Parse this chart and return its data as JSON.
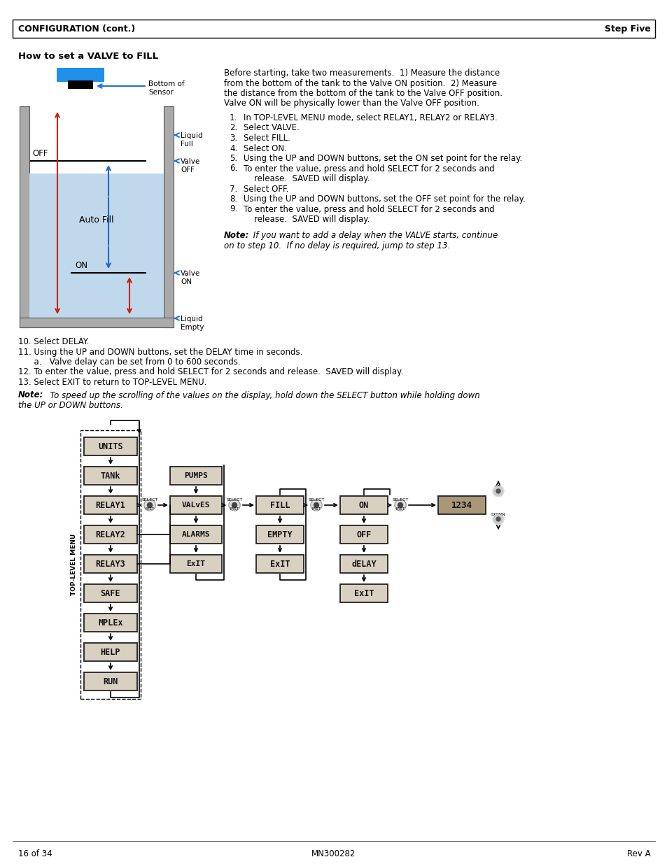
{
  "page_bg": "#ffffff",
  "header_text_left": "CONFIGURATION (cont.)",
  "header_text_right": "Step Five",
  "section_title": "How to set a VALVE to FILL",
  "footer_left": "16 of 34",
  "footer_center": "MN300282",
  "footer_right": "Rev A",
  "fig_w": 9.54,
  "fig_h": 12.35,
  "dpi": 100
}
